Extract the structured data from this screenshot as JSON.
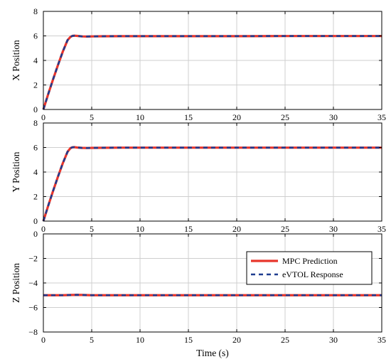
{
  "chart_data": [
    {
      "type": "line",
      "ylabel": "X Position",
      "xlim": [
        0,
        35
      ],
      "ylim": [
        0,
        8
      ],
      "xticks": [
        0,
        5,
        10,
        15,
        20,
        25,
        30,
        35
      ],
      "yticks": [
        0,
        2,
        4,
        6,
        8
      ],
      "grid": true,
      "series": [
        {
          "name": "MPC Prediction",
          "color": "#e8352b",
          "style": "solid",
          "x": [
            0,
            0.5,
            1,
            1.5,
            2,
            2.5,
            2.8,
            3.0,
            3.2,
            3.5,
            4,
            4.5,
            5,
            6,
            8,
            10,
            15,
            20,
            25,
            30,
            35
          ],
          "y": [
            0,
            1.25,
            2.45,
            3.6,
            4.7,
            5.65,
            5.92,
            6.0,
            6.02,
            6.0,
            5.96,
            5.95,
            5.96,
            5.97,
            5.98,
            5.98,
            5.98,
            5.98,
            5.99,
            5.99,
            5.99
          ]
        },
        {
          "name": "eVTOL Response",
          "color": "#1f3c8f",
          "style": "dashed",
          "x": [
            0,
            0.5,
            1,
            1.5,
            2,
            2.5,
            2.8,
            3.0,
            3.2,
            3.5,
            4,
            4.5,
            5,
            6,
            8,
            10,
            15,
            20,
            25,
            30,
            35
          ],
          "y": [
            0,
            1.25,
            2.45,
            3.6,
            4.7,
            5.65,
            5.92,
            6.0,
            6.02,
            6.0,
            5.96,
            5.95,
            5.96,
            5.97,
            5.98,
            5.98,
            5.98,
            5.98,
            5.99,
            5.99,
            5.99
          ]
        }
      ]
    },
    {
      "type": "line",
      "ylabel": "Y Position",
      "xlim": [
        0,
        35
      ],
      "ylim": [
        0,
        8
      ],
      "xticks": [
        0,
        5,
        10,
        15,
        20,
        25,
        30,
        35
      ],
      "yticks": [
        0,
        2,
        4,
        6,
        8
      ],
      "grid": true,
      "series": [
        {
          "name": "MPC Prediction",
          "color": "#e8352b",
          "style": "solid",
          "x": [
            0,
            0.5,
            1,
            1.5,
            2,
            2.5,
            2.8,
            3.0,
            3.2,
            3.5,
            4,
            4.5,
            5,
            6,
            8,
            10,
            15,
            20,
            25,
            30,
            35
          ],
          "y": [
            0,
            1.25,
            2.45,
            3.6,
            4.7,
            5.65,
            5.95,
            6.02,
            6.03,
            6.0,
            5.97,
            5.96,
            5.97,
            5.98,
            5.99,
            5.99,
            5.99,
            5.99,
            5.99,
            5.99,
            5.99
          ]
        },
        {
          "name": "eVTOL Response",
          "color": "#1f3c8f",
          "style": "dashed",
          "x": [
            0,
            0.5,
            1,
            1.5,
            2,
            2.5,
            2.8,
            3.0,
            3.2,
            3.5,
            4,
            4.5,
            5,
            6,
            8,
            10,
            15,
            20,
            25,
            30,
            35
          ],
          "y": [
            0,
            1.25,
            2.45,
            3.6,
            4.7,
            5.65,
            5.95,
            6.02,
            6.03,
            6.0,
            5.97,
            5.96,
            5.97,
            5.98,
            5.99,
            5.99,
            5.99,
            5.99,
            5.99,
            5.99,
            5.99
          ]
        }
      ]
    },
    {
      "type": "line",
      "ylabel": "Z Position",
      "xlabel": "Time (s)",
      "xlim": [
        0,
        35
      ],
      "ylim": [
        -8,
        0
      ],
      "xticks": [
        0,
        5,
        10,
        15,
        20,
        25,
        30,
        35
      ],
      "yticks": [
        -8,
        -6,
        -4,
        -2,
        0
      ],
      "ytick_labels": [
        "−8",
        "−6",
        "−4",
        "−2",
        "0"
      ],
      "grid": true,
      "legend": {
        "placement": "upper-right",
        "entries": [
          "MPC Prediction",
          "eVTOL Response"
        ]
      },
      "series": [
        {
          "name": "MPC Prediction",
          "color": "#e8352b",
          "style": "solid",
          "x": [
            0,
            1,
            2,
            3,
            3.5,
            4,
            5,
            10,
            15,
            20,
            25,
            30,
            35
          ],
          "y": [
            -5,
            -5,
            -5,
            -4.98,
            -4.97,
            -4.98,
            -5,
            -5,
            -5,
            -5,
            -5,
            -5,
            -5
          ]
        },
        {
          "name": "eVTOL Response",
          "color": "#1f3c8f",
          "style": "dashed",
          "x": [
            0,
            1,
            2,
            3,
            3.5,
            4,
            5,
            10,
            15,
            20,
            25,
            30,
            35
          ],
          "y": [
            -5,
            -5,
            -5,
            -4.98,
            -4.97,
            -4.98,
            -5,
            -5,
            -5,
            -5,
            -5,
            -5,
            -5
          ]
        }
      ]
    }
  ]
}
